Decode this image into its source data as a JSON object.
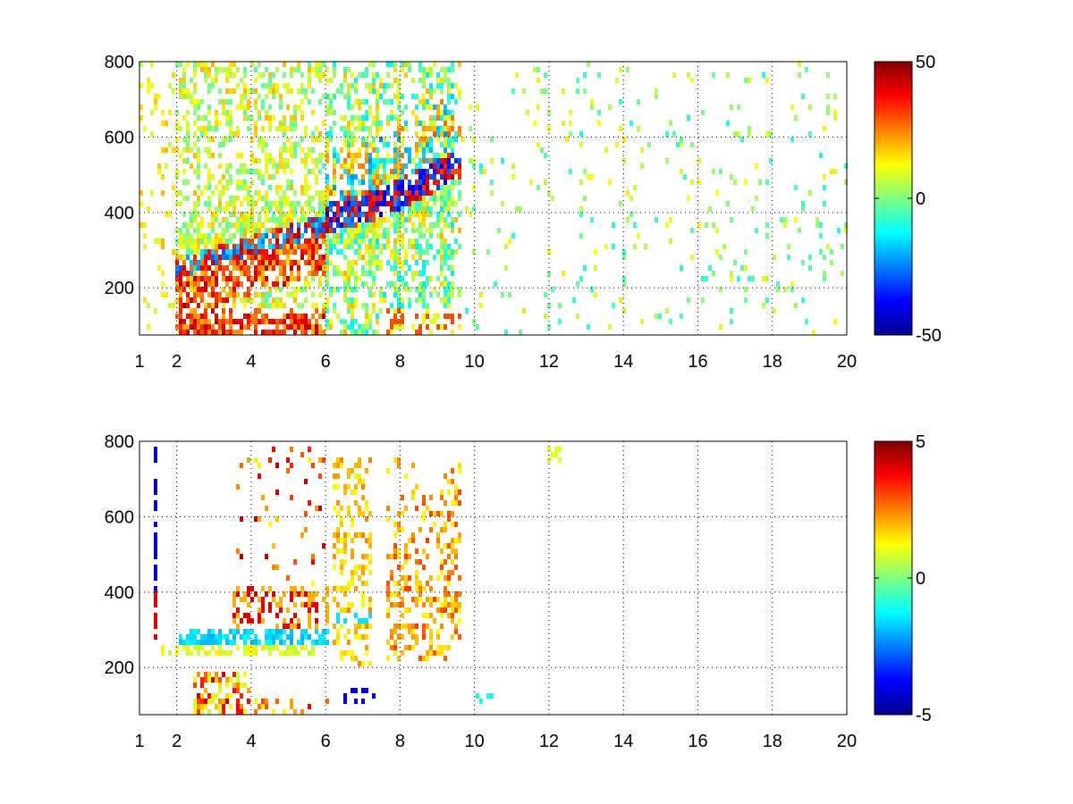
{
  "chart_data": [
    {
      "type": "heatmap",
      "title": "",
      "xlabel": "",
      "ylabel": "",
      "x_range": [
        1,
        20
      ],
      "y_range": [
        75,
        800
      ],
      "x_ticks": [
        1,
        2,
        4,
        6,
        8,
        10,
        12,
        14,
        16,
        18,
        20
      ],
      "y_ticks": [
        200,
        400,
        600,
        800
      ],
      "grid": true,
      "colormap": "jet",
      "color_range": [
        -50,
        50
      ],
      "colorbar_ticks": [
        50,
        0,
        -50
      ],
      "colorbar_tick_labels": [
        "50",
        "0",
        "-50"
      ]
    },
    {
      "type": "heatmap",
      "title": "",
      "xlabel": "",
      "ylabel": "",
      "x_range": [
        1,
        20
      ],
      "y_range": [
        75,
        800
      ],
      "x_ticks": [
        1,
        2,
        4,
        6,
        8,
        10,
        12,
        14,
        16,
        18,
        20
      ],
      "y_ticks": [
        200,
        400,
        600,
        800
      ],
      "grid": true,
      "colormap": "jet",
      "color_range": [
        -5,
        5
      ],
      "colorbar_ticks": [
        5,
        0,
        -5
      ],
      "colorbar_tick_labels": [
        "5",
        "0",
        "-5"
      ]
    }
  ]
}
